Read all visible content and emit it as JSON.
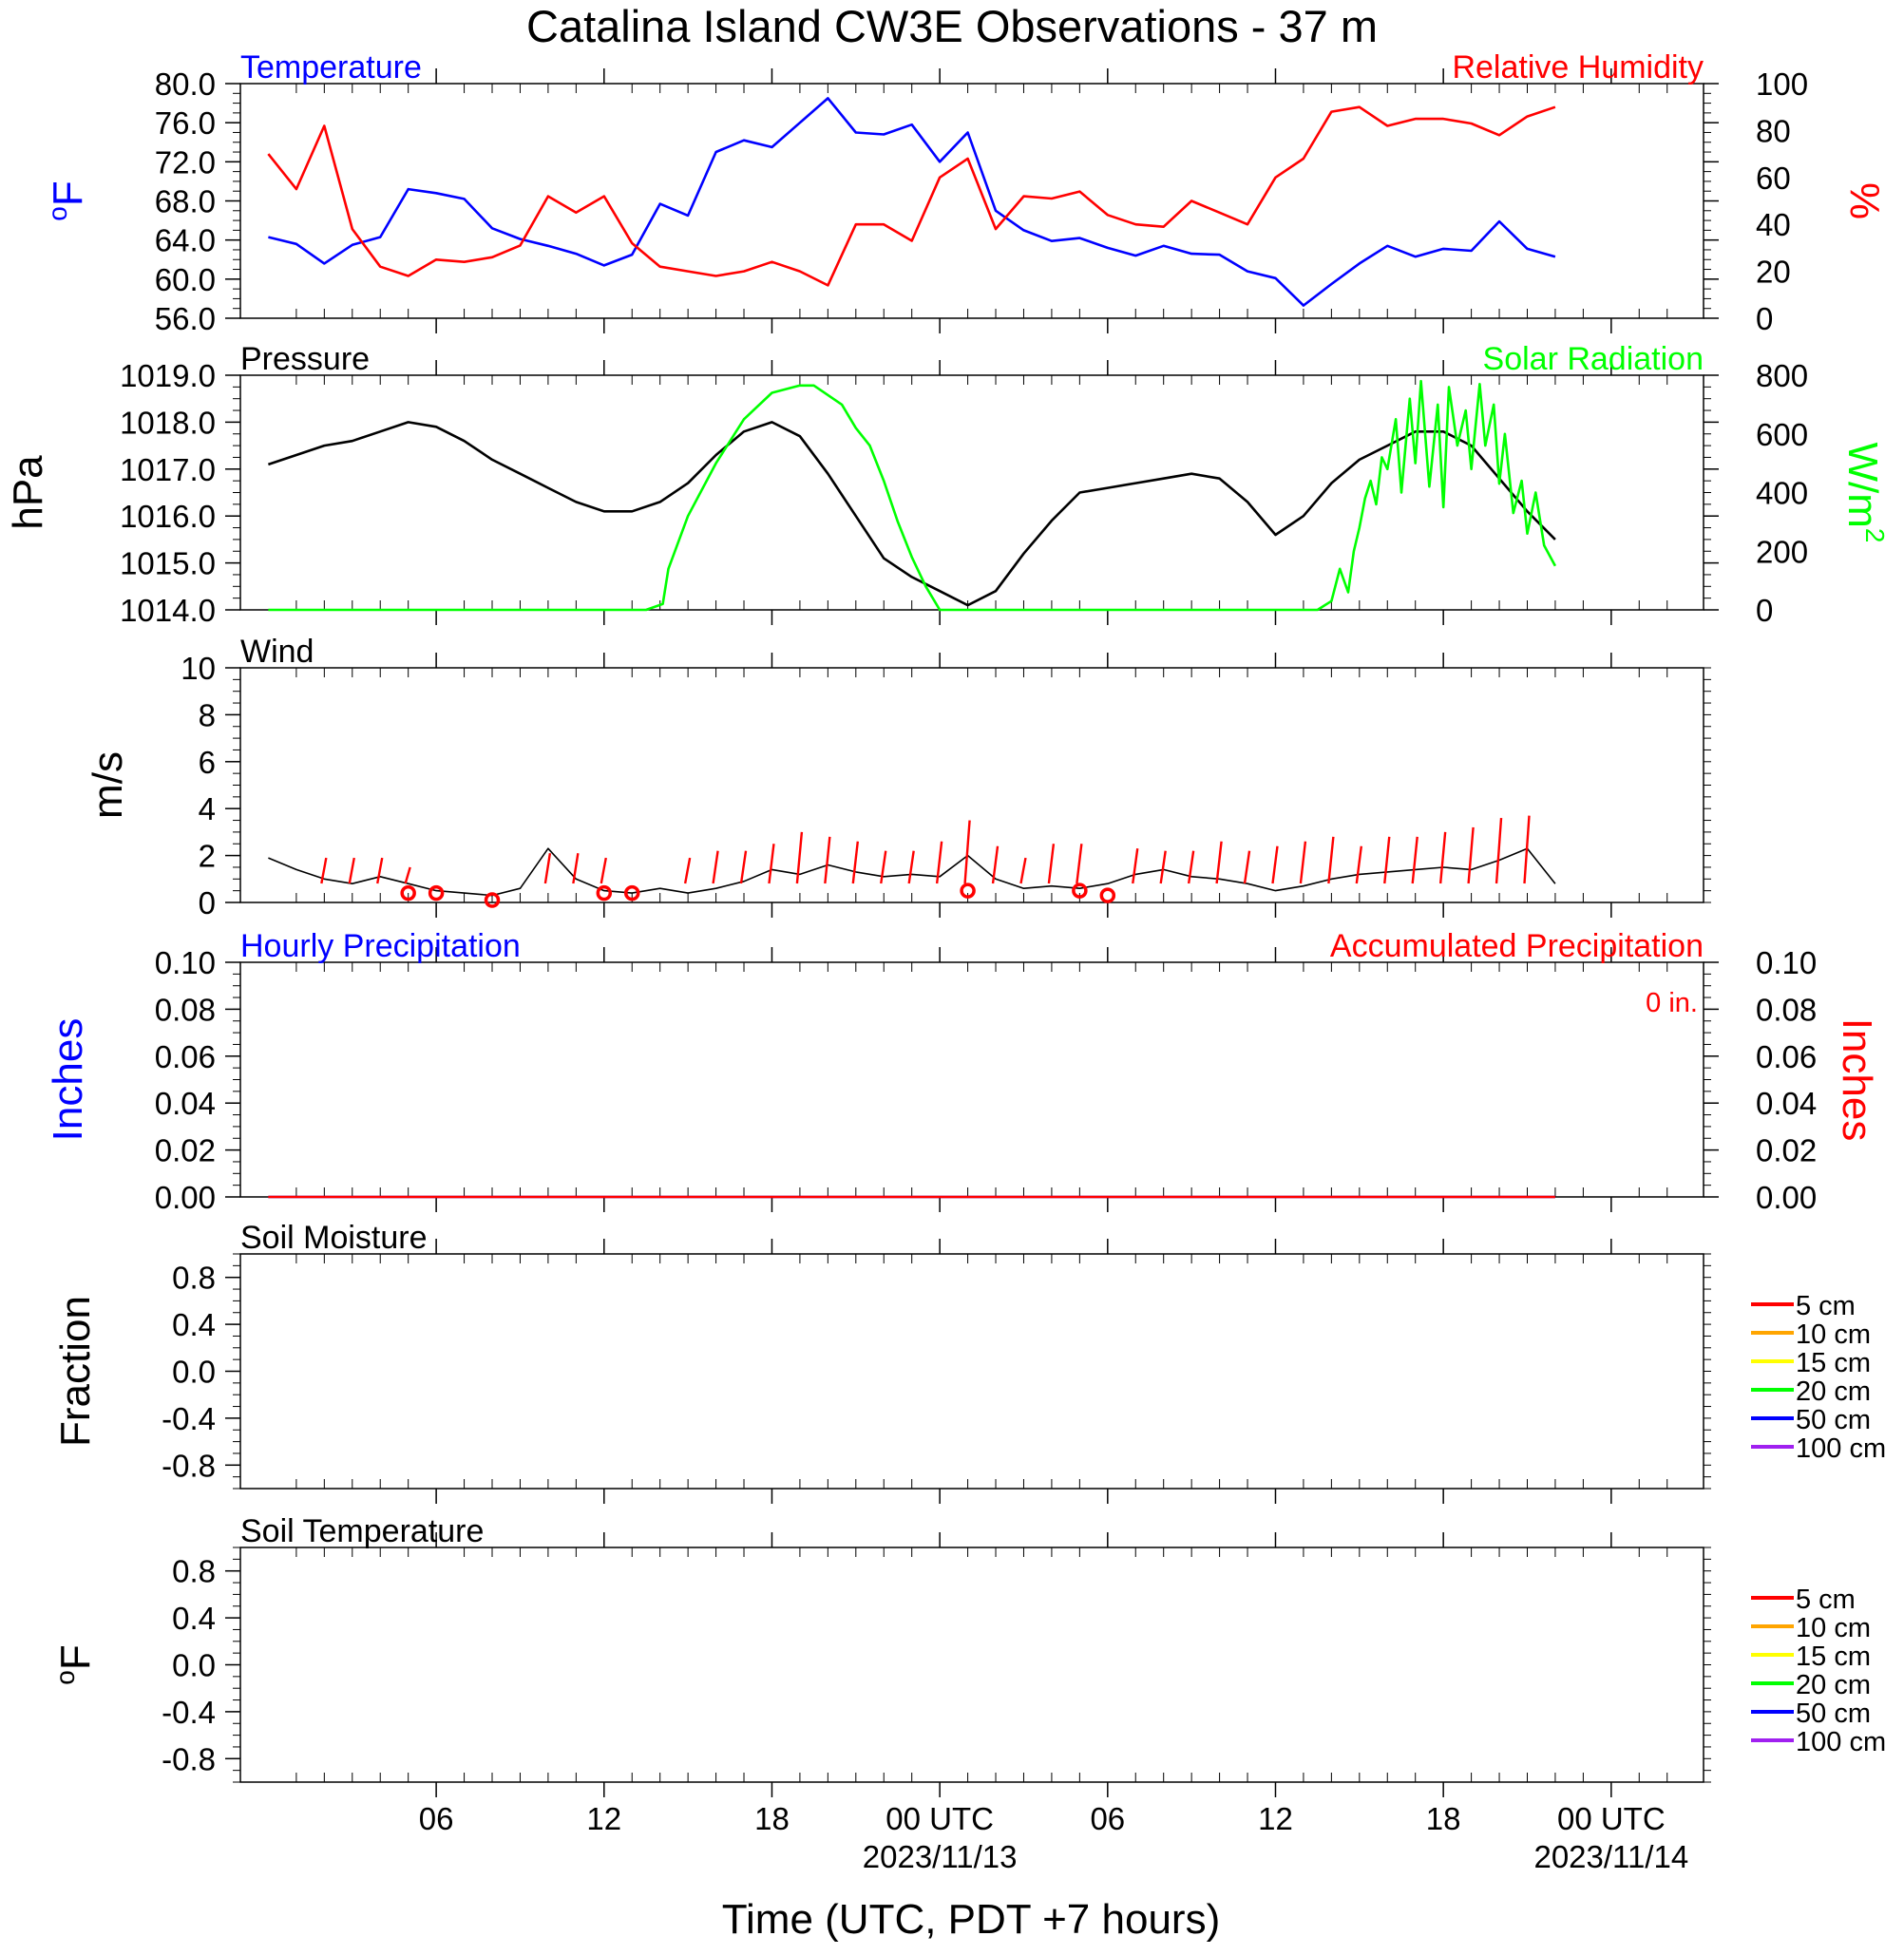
{
  "title": "Catalina Island CW3E Observations - 37 m",
  "xaxis": {
    "label": "Time (UTC, PDT +7 hours)",
    "ticks": [
      "06",
      "12",
      "18",
      "00 UTC",
      "06",
      "12",
      "18",
      "00 UTC"
    ],
    "dates": [
      "2023/11/13",
      "2023/11/14"
    ]
  },
  "colors": {
    "blue": "#0000ff",
    "red": "#ff0000",
    "green": "#00ff00",
    "black": "#000000",
    "orange": "#ffa500",
    "yellow": "#ffff00",
    "purple": "#a020f0"
  },
  "chart_data": [
    {
      "id": "temp_rh",
      "type": "line",
      "title_left": "Temperature",
      "title_right": "Relative Humidity",
      "ylabel_left": "oF",
      "ylabel_right": "%",
      "ylim_left": [
        56,
        80
      ],
      "ylim_right": [
        0,
        100
      ],
      "yticks_left": [
        "80.0",
        "76.0",
        "72.0",
        "68.0",
        "64.0",
        "60.0",
        "56.0"
      ],
      "yticks_right": [
        "100",
        "80",
        "60",
        "40",
        "20",
        "0"
      ],
      "x_hours": [
        0,
        1,
        2,
        3,
        4,
        5,
        6,
        7,
        8,
        9,
        10,
        11,
        12,
        13,
        14,
        15,
        16,
        17,
        18,
        19,
        20,
        21,
        22,
        23,
        24,
        25,
        26,
        27,
        28,
        29,
        30,
        31,
        32,
        33,
        34,
        35,
        36,
        37,
        38,
        39,
        40,
        41,
        42,
        43,
        44,
        45,
        46
      ],
      "series": [
        {
          "name": "Temperature",
          "color": "#0000ff",
          "axis": "left",
          "values": [
            64.3,
            63.6,
            61.6,
            63.5,
            64.3,
            69.2,
            68.8,
            68.2,
            65.2,
            64.1,
            63.4,
            62.6,
            61.4,
            62.5,
            67.7,
            66.5,
            73.0,
            74.2,
            73.5,
            76.0,
            78.5,
            75.0,
            74.8,
            75.8,
            72.0,
            75.0,
            67.0,
            65.0,
            63.9,
            64.2,
            63.2,
            62.4,
            63.4,
            62.6,
            62.5,
            60.8,
            60.1,
            57.3,
            59.5,
            61.6,
            63.4,
            62.3,
            63.1,
            62.9,
            65.9,
            63.1,
            62.3
          ]
        },
        {
          "name": "Relative Humidity",
          "color": "#ff0000",
          "axis": "right",
          "values": [
            70,
            55,
            82,
            38,
            22,
            18,
            25,
            24,
            26,
            31,
            52,
            45,
            52,
            32,
            22,
            20,
            18,
            20,
            24,
            20,
            14,
            40,
            40,
            33,
            60,
            68,
            38,
            52,
            51,
            54,
            44,
            40,
            39,
            50,
            45,
            40,
            60,
            68,
            88,
            90,
            82,
            85,
            85,
            83,
            78,
            86,
            90
          ]
        }
      ]
    },
    {
      "id": "pressure_solar",
      "type": "line",
      "title_left": "Pressure",
      "title_right": "Solar Radiation",
      "ylabel_left": "hPa",
      "ylabel_right": "W/m2",
      "ylim_left": [
        1014,
        1019
      ],
      "ylim_right": [
        0,
        800
      ],
      "yticks_left": [
        "1019.0",
        "1018.0",
        "1017.0",
        "1016.0",
        "1015.0",
        "1014.0"
      ],
      "yticks_right": [
        "800",
        "600",
        "400",
        "200",
        "0"
      ],
      "series": [
        {
          "name": "Pressure",
          "color": "#000000",
          "axis": "left",
          "x_hours": [
            0,
            1,
            2,
            3,
            4,
            5,
            6,
            7,
            8,
            9,
            10,
            11,
            12,
            13,
            14,
            15,
            16,
            17,
            18,
            19,
            20,
            21,
            22,
            23,
            24,
            25,
            26,
            27,
            28,
            29,
            30,
            31,
            32,
            33,
            34,
            35,
            36,
            37,
            38,
            39,
            40,
            41,
            42,
            43,
            44,
            45,
            46
          ],
          "values": [
            1017.1,
            1017.3,
            1017.5,
            1017.6,
            1017.8,
            1018.0,
            1017.9,
            1017.6,
            1017.2,
            1016.9,
            1016.6,
            1016.3,
            1016.1,
            1016.1,
            1016.3,
            1016.7,
            1017.3,
            1017.8,
            1018.0,
            1017.7,
            1016.9,
            1016.0,
            1015.1,
            1014.7,
            1014.4,
            1014.1,
            1014.4,
            1015.2,
            1015.9,
            1016.5,
            1016.6,
            1016.7,
            1016.8,
            1016.9,
            1016.8,
            1016.3,
            1015.6,
            1016.0,
            1016.7,
            1017.2,
            1017.5,
            1017.8,
            1017.8,
            1017.5,
            1016.8,
            1016.1,
            1015.5
          ]
        },
        {
          "name": "Solar Radiation",
          "color": "#00ff00",
          "axis": "right",
          "x_hours": [
            0,
            13.5,
            14.1,
            14.3,
            15,
            16,
            17,
            18,
            19,
            19.5,
            20.5,
            21,
            21.5,
            22,
            22.5,
            23,
            23.5,
            24,
            24.5,
            25,
            26,
            35,
            37.5,
            38,
            38.3,
            38.6,
            38.8,
            39,
            39.2,
            39.4,
            39.6,
            39.8,
            40,
            40.3,
            40.5,
            40.8,
            41,
            41.2,
            41.5,
            41.8,
            42,
            42.2,
            42.5,
            42.8,
            43,
            43.3,
            43.5,
            43.8,
            44,
            44.2,
            44.5,
            44.8,
            45,
            45.3,
            45.6,
            46
          ],
          "values": [
            0,
            0,
            20,
            140,
            320,
            500,
            650,
            740,
            765,
            765,
            700,
            620,
            560,
            440,
            300,
            180,
            80,
            0,
            0,
            0,
            0,
            0,
            0,
            30,
            140,
            60,
            200,
            280,
            380,
            440,
            360,
            520,
            480,
            650,
            400,
            720,
            500,
            780,
            420,
            700,
            350,
            760,
            560,
            680,
            480,
            770,
            560,
            700,
            430,
            600,
            330,
            440,
            260,
            400,
            220,
            150
          ]
        }
      ]
    },
    {
      "id": "wind",
      "type": "line",
      "title_left": "Wind",
      "ylabel_left": "m/s",
      "ylim_left": [
        0,
        10
      ],
      "yticks_left": [
        "10",
        "8",
        "6",
        "4",
        "2",
        "0"
      ],
      "series": [
        {
          "name": "Wind speed",
          "color": "#000000",
          "x_hours": [
            0,
            1,
            2,
            3,
            4,
            5,
            6,
            7,
            8,
            9,
            10,
            11,
            12,
            13,
            14,
            15,
            16,
            17,
            18,
            19,
            20,
            21,
            22,
            23,
            24,
            25,
            26,
            27,
            28,
            29,
            30,
            31,
            32,
            33,
            34,
            35,
            36,
            37,
            38,
            39,
            40,
            41,
            42,
            43,
            44,
            45,
            46
          ],
          "values": [
            1.9,
            1.4,
            1.0,
            0.8,
            1.1,
            0.8,
            0.5,
            0.4,
            0.3,
            0.6,
            2.3,
            1.0,
            0.5,
            0.4,
            0.6,
            0.4,
            0.6,
            0.9,
            1.4,
            1.2,
            1.6,
            1.3,
            1.1,
            1.2,
            1.1,
            2.0,
            1.0,
            0.6,
            0.7,
            0.6,
            0.8,
            1.2,
            1.4,
            1.1,
            1.0,
            0.8,
            0.5,
            0.7,
            1.0,
            1.2,
            1.3,
            1.4,
            1.5,
            1.4,
            1.8,
            2.3,
            0.8
          ]
        },
        {
          "name": "Wind barbs (speed)",
          "color": "#ff0000",
          "x_hours": [
            2,
            3,
            4,
            5,
            10,
            11,
            12,
            15,
            16,
            17,
            18,
            19,
            20,
            21,
            22,
            23,
            24,
            25,
            26,
            27,
            28,
            29,
            31,
            32,
            33,
            34,
            35,
            36,
            37,
            38,
            39,
            40,
            41,
            42,
            43,
            44,
            45
          ],
          "values": [
            1.9,
            1.9,
            1.9,
            1.5,
            2.1,
            2.1,
            1.9,
            1.9,
            2.2,
            2.2,
            2.5,
            3.0,
            2.8,
            2.6,
            2.2,
            2.2,
            2.6,
            3.5,
            2.4,
            1.9,
            2.5,
            2.5,
            2.3,
            2.2,
            2.2,
            2.6,
            2.2,
            2.4,
            2.6,
            2.8,
            2.4,
            2.8,
            2.8,
            3.0,
            3.2,
            3.6,
            3.7
          ]
        },
        {
          "name": "Calm",
          "color": "#ff0000",
          "x_hours": [
            5,
            6,
            8,
            12,
            13,
            25,
            29,
            30
          ],
          "values": [
            0.4,
            0.4,
            0.1,
            0.4,
            0.4,
            0.5,
            0.5,
            0.3
          ]
        }
      ]
    },
    {
      "id": "precip",
      "type": "line",
      "title_left": "Hourly Precipitation",
      "title_right": "Accumulated Precipitation",
      "annotation": "0 in.",
      "ylabel_left": "Inches",
      "ylabel_right": "Inches",
      "ylim_left": [
        0,
        0.1
      ],
      "ylim_right": [
        0,
        0.1
      ],
      "yticks_left": [
        "0.10",
        "0.08",
        "0.06",
        "0.04",
        "0.02",
        "0.00"
      ],
      "yticks_right": [
        "0.10",
        "0.08",
        "0.06",
        "0.04",
        "0.02",
        "0.00"
      ],
      "series": [
        {
          "name": "Hourly Precipitation",
          "color": "#0000ff",
          "x_hours": [
            0,
            46
          ],
          "values": [
            0,
            0
          ]
        },
        {
          "name": "Accumulated Precipitation",
          "color": "#ff0000",
          "x_hours": [
            0,
            46
          ],
          "values": [
            0,
            0
          ]
        }
      ]
    },
    {
      "id": "soil_moisture",
      "type": "line",
      "title_left": "Soil Moisture",
      "ylabel_left": "Fraction",
      "ylim_left": [
        -1,
        1
      ],
      "yticks_left": [
        "0.8",
        "0.4",
        "0.0",
        "-0.4",
        "-0.8"
      ],
      "legend": [
        {
          "label": "5 cm",
          "color": "#ff0000"
        },
        {
          "label": "10 cm",
          "color": "#ffa500"
        },
        {
          "label": "15 cm",
          "color": "#ffff00"
        },
        {
          "label": "20 cm",
          "color": "#00ff00"
        },
        {
          "label": "50 cm",
          "color": "#0000ff"
        },
        {
          "label": "100 cm",
          "color": "#a020f0"
        }
      ],
      "series": []
    },
    {
      "id": "soil_temp",
      "type": "line",
      "title_left": "Soil Temperature",
      "ylabel_left": "oF",
      "ylim_left": [
        -1,
        1
      ],
      "yticks_left": [
        "0.8",
        "0.4",
        "0.0",
        "-0.4",
        "-0.8"
      ],
      "legend": [
        {
          "label": "5 cm",
          "color": "#ff0000"
        },
        {
          "label": "10 cm",
          "color": "#ffa500"
        },
        {
          "label": "15 cm",
          "color": "#ffff00"
        },
        {
          "label": "20 cm",
          "color": "#00ff00"
        },
        {
          "label": "50 cm",
          "color": "#0000ff"
        },
        {
          "label": "100 cm",
          "color": "#a020f0"
        }
      ],
      "series": []
    }
  ]
}
